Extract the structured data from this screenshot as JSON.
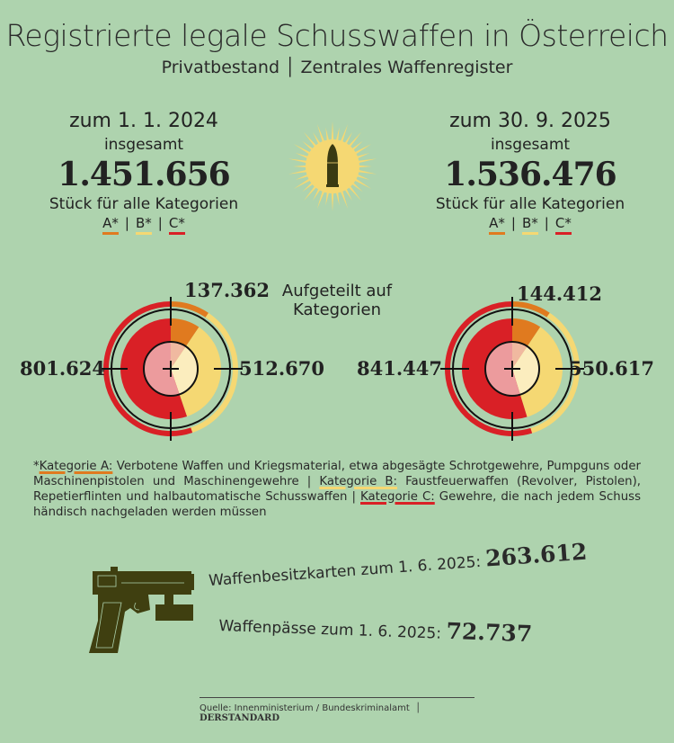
{
  "title": "Registrierte legale Schusswaffen in Österreich",
  "subtitle": "Privatbestand │ Zentrales Waffenregister",
  "left": {
    "date": "zum 1. 1. 2024",
    "insgesamt": "insgesamt",
    "total": "1.451.656",
    "unit": "Stück für alle Kategorien"
  },
  "right": {
    "date": "zum 30. 9. 2025",
    "insgesamt": "insgesamt",
    "total": "1.536.476",
    "unit": "Stück für alle Kategorien"
  },
  "cat_labels": {
    "a": "A*",
    "b": "B*",
    "c": "C*",
    "sep": "|"
  },
  "middle_label": "Aufgeteilt auf Kategorien",
  "colors": {
    "a": "#e07a1f",
    "b": "#f5d873",
    "c": "#d92026",
    "a_light": "#f0b9a0",
    "b_light": "#fbedbe",
    "c_light": "#ec9b9d",
    "bg": "#aed3ae"
  },
  "chart_data": [
    {
      "type": "pie",
      "title": "zum 1. 1. 2024",
      "categories": [
        "Kategorie A",
        "Kategorie B",
        "Kategorie C"
      ],
      "values": [
        137362,
        512670,
        801624
      ],
      "labels": [
        "137.362",
        "512.670",
        "801.624"
      ]
    },
    {
      "type": "pie",
      "title": "zum 30. 9. 2025",
      "categories": [
        "Kategorie A",
        "Kategorie B",
        "Kategorie C"
      ],
      "values": [
        144412,
        550617,
        841447
      ],
      "labels": [
        "144.412",
        "550.617",
        "841.447"
      ]
    }
  ],
  "footnote": {
    "star": "*",
    "a_label": "Kategorie A:",
    "a_text": " Verbotene Waffen und Kriegsmaterial, etwa abgesägte Schrotgewehre, Pumpguns oder Maschinenpistolen und Maschinengewehre | ",
    "b_label": "Kategorie B:",
    "b_text": " Faustfeuerwaffen (Revolver, Pistolen), Repetierflinten und halbautomatische Schusswaffen | ",
    "c_label": "Kategorie C:",
    "c_text": " Gewehre, die nach jedem Schuss händisch nachgeladen werden müssen"
  },
  "stats": [
    {
      "label": "Waffenbesitzkarten zum 1. 6. 2025: ",
      "value": "263.612"
    },
    {
      "label": "Waffenpässe zum 1. 6. 2025: ",
      "value": "72.737"
    }
  ],
  "source": "Quelle: Innenministerium / Bundeskriminalamt",
  "brand": "DERSTANDARD"
}
